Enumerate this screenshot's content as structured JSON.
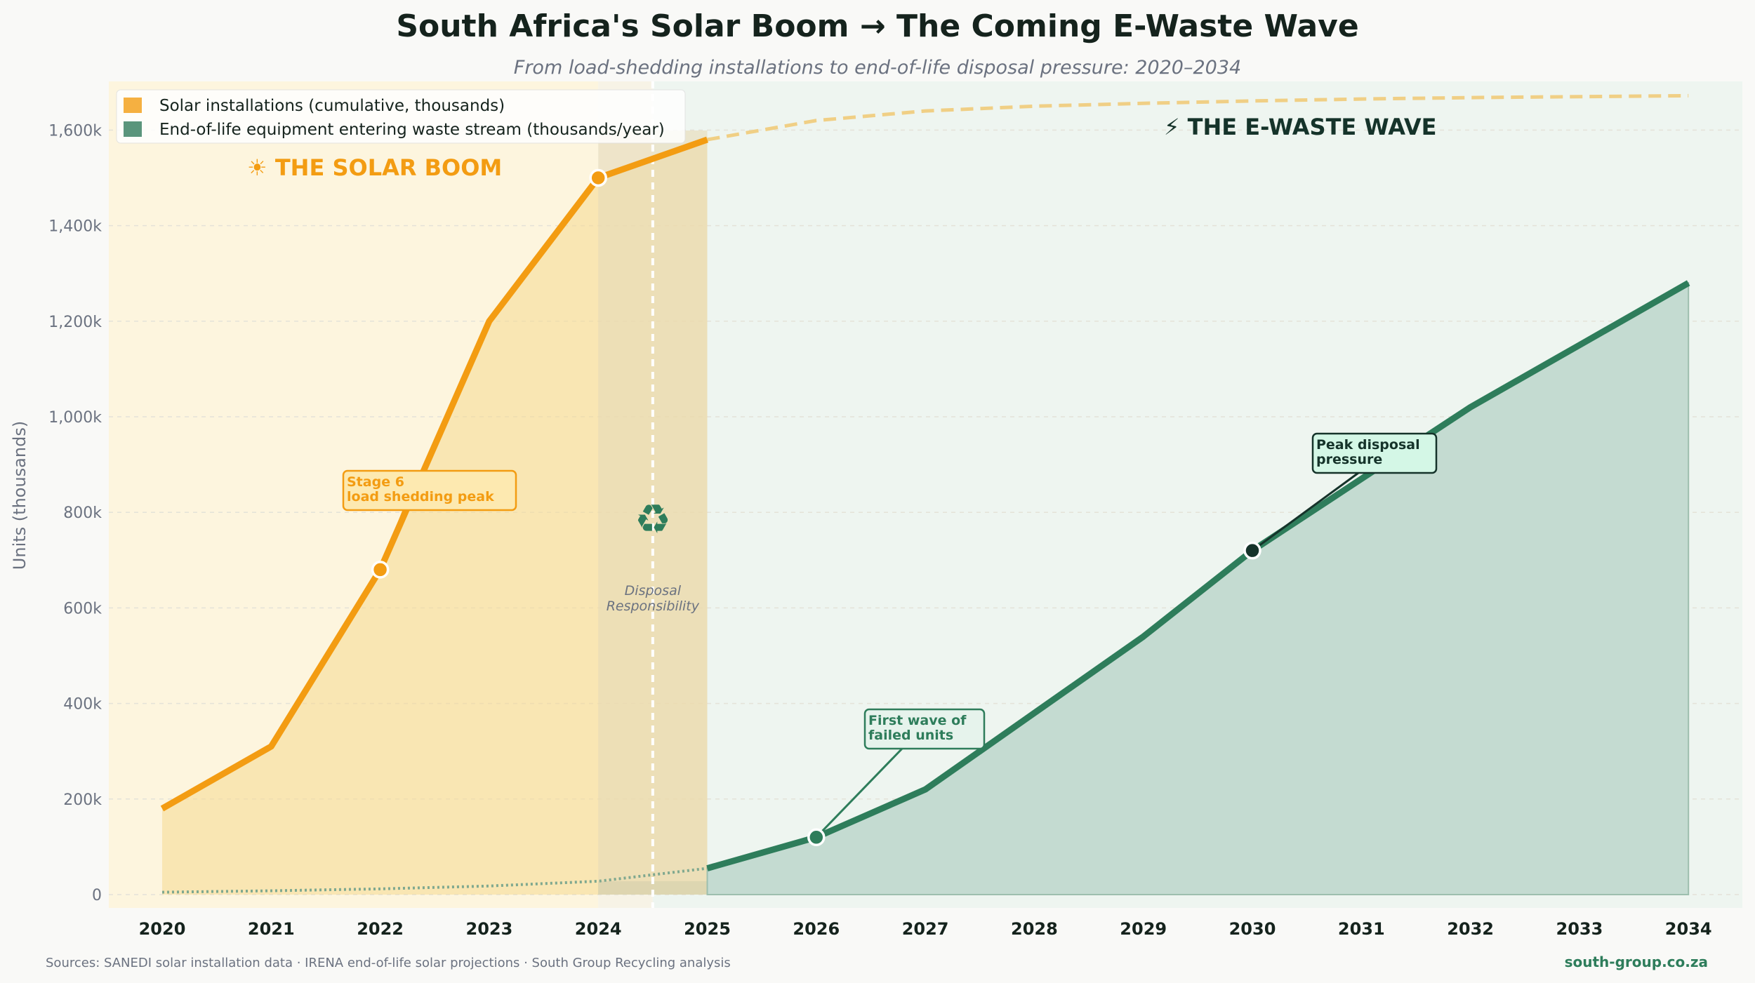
{
  "header": {
    "title": "South Africa's Solar Boom → The Coming E-Waste Wave",
    "subtitle": "From load-shedding installations to end-of-life disposal pressure: 2020–2034"
  },
  "footer": {
    "sources": "Sources: SANEDI solar installation data · IRENA end-of-life solar projections · South Group Recycling analysis",
    "website": "south-group.co.za"
  },
  "colors": {
    "solar": "#f39c12",
    "ewaste": "#2e7d5b",
    "dark": "#15332a",
    "background": "#f9f9f7"
  },
  "chart_data": {
    "type": "line",
    "title": "South Africa's Solar Boom → The Coming E-Waste Wave",
    "ylabel": "Units (thousands)",
    "xlabel": "",
    "xlim": [
      2020,
      2034
    ],
    "ylim": [
      0,
      1700
    ],
    "x_ticks": [
      "2020",
      "2021",
      "2022",
      "2023",
      "2024",
      "2025",
      "2026",
      "2027",
      "2028",
      "2029",
      "2030",
      "2031",
      "2032",
      "2033",
      "2034"
    ],
    "y_ticks": [
      0,
      200,
      400,
      600,
      800,
      1000,
      1200,
      1400,
      1600
    ],
    "y_tick_labels": [
      "0",
      "200k",
      "400k",
      "600k",
      "800k",
      "1,000k",
      "1,200k",
      "1,400k",
      "1,600k"
    ],
    "grid": "horizontal dashed",
    "legend_position": "top-left",
    "legend": [
      "Solar installations (cumulative, thousands)",
      "End-of-life equipment entering waste stream (thousands/year)"
    ],
    "series": [
      {
        "name": "Solar installations (cumulative, thousands)",
        "style": "solid",
        "x": [
          2020,
          2021,
          2022,
          2023,
          2024,
          2025
        ],
        "y": [
          180,
          310,
          680,
          1200,
          1500,
          1580
        ]
      },
      {
        "name": "Solar installations projection",
        "style": "dashed",
        "x": [
          2025,
          2026,
          2027,
          2028,
          2029,
          2030,
          2031,
          2032,
          2033,
          2034
        ],
        "y": [
          1580,
          1620,
          1640,
          1650,
          1656,
          1661,
          1665,
          1668,
          1670,
          1672
        ]
      },
      {
        "name": "End-of-life equipment entering waste stream (thousands/year)",
        "style": "solid",
        "x": [
          2025,
          2026,
          2027,
          2028,
          2029,
          2030,
          2031,
          2032,
          2033,
          2034
        ],
        "y": [
          55,
          120,
          220,
          380,
          540,
          720,
          870,
          1020,
          1150,
          1280
        ]
      },
      {
        "name": "End-of-life early trickle",
        "style": "dotted",
        "x": [
          2020,
          2021,
          2022,
          2023,
          2024,
          2025
        ],
        "y": [
          5,
          8,
          12,
          18,
          28,
          55
        ]
      }
    ],
    "regions": [
      {
        "label": "THE SOLAR BOOM",
        "icon": "☀",
        "from": 2019.5,
        "to": 2024.5
      },
      {
        "label": "THE E-WASTE WAVE",
        "icon": "⚡",
        "from": 2024.5,
        "to": 2035.2
      }
    ],
    "divider": {
      "x": 2024.5,
      "label": "Disposal Responsibility",
      "icon": "♻"
    },
    "annotations": [
      {
        "text": [
          "Stage 6",
          "load shedding peak"
        ],
        "x": 2022,
        "y": 680
      },
      {
        "text": [
          "First wave of",
          "failed units"
        ],
        "x": 2026,
        "y": 120
      },
      {
        "text": [
          "Peak disposal",
          "pressure"
        ],
        "x": 2030,
        "y": 720
      }
    ]
  }
}
